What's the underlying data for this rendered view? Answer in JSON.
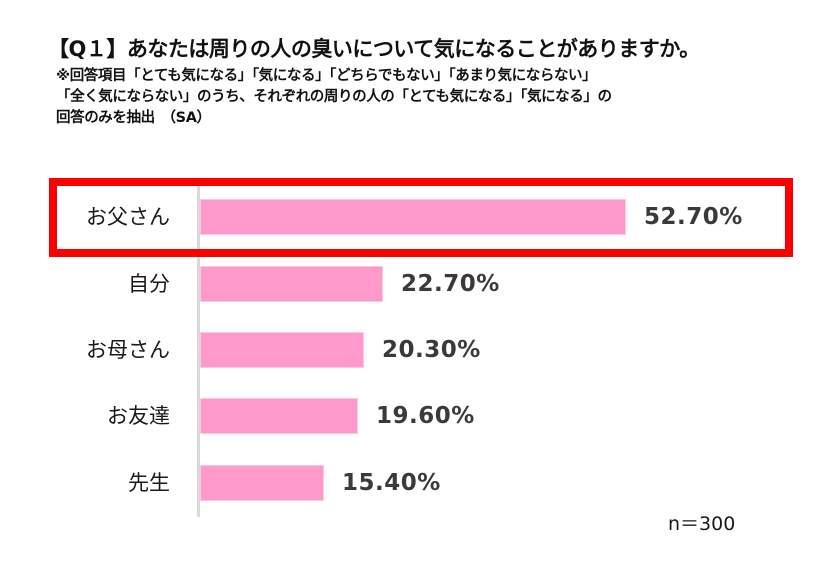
{
  "chart_data": {
    "type": "bar",
    "orientation": "horizontal",
    "title": "【Q１】あなたは周りの人の臭いについて気になることがありますか。",
    "subtitle": [
      "※回答項目「とても気になる」「気になる」「どちらでもない」「あまり気にならない」",
      "「全く気にならない」のうち、それぞれの周りの人の「とても気になる」「気になる」の",
      "回答のみを抽出　（SA）"
    ],
    "categories": [
      "お父さん",
      "自分",
      "お母さん",
      "お友達",
      "先生"
    ],
    "values": [
      52.7,
      22.7,
      20.3,
      19.6,
      15.4
    ],
    "value_labels": [
      "52.70%",
      "22.70%",
      "20.30%",
      "19.60%",
      "15.40%"
    ],
    "unit": "%",
    "xlabel": "",
    "ylabel": "",
    "xlim": [
      0,
      60
    ],
    "grid": false,
    "legend": null,
    "annotations": [
      {
        "type": "highlight-box",
        "target": "お父さん",
        "color": "#ff0000"
      },
      {
        "type": "text",
        "text": "n＝300",
        "position": "bottom-right"
      }
    ],
    "bar_color": "#ff99cc",
    "highlight_color": "#ff0000",
    "sample_size": "n＝300"
  }
}
